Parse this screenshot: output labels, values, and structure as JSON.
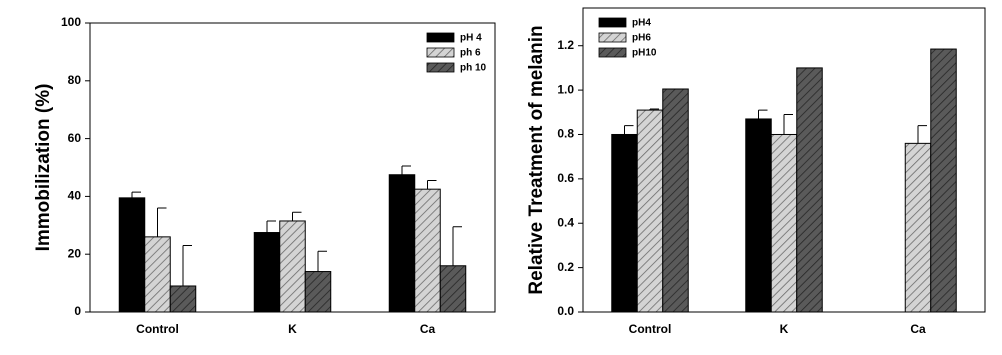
{
  "chart_data": [
    {
      "type": "bar",
      "y_label": "Immobilization (%)",
      "categories": [
        "Control",
        "K",
        "Ca"
      ],
      "series": [
        {
          "name": "pH 4",
          "color": "#000000",
          "hatch": false,
          "values": [
            39.5,
            27.5,
            47.5
          ],
          "errors": [
            2,
            4,
            3
          ]
        },
        {
          "name": "ph 6",
          "color": "#c8c8c8",
          "hatch": true,
          "values": [
            26,
            31.5,
            42.5
          ],
          "errors": [
            10,
            3,
            3
          ]
        },
        {
          "name": "ph 10",
          "color": "#555555",
          "hatch": true,
          "values": [
            9,
            14,
            16
          ],
          "errors": [
            14,
            7,
            13.5
          ]
        }
      ],
      "ylim": [
        0,
        100
      ],
      "yticks": [
        0,
        20,
        40,
        60,
        80,
        100
      ],
      "legend": "upper right"
    },
    {
      "type": "bar",
      "y_label": "Relative Treatment of melanin",
      "categories": [
        "Control",
        "K",
        "Ca"
      ],
      "series": [
        {
          "name": "pH4",
          "color": "#000000",
          "hatch": false,
          "values": [
            0.8,
            0.87,
            null
          ],
          "errors": [
            0.04,
            0.04,
            null
          ]
        },
        {
          "name": "pH6",
          "color": "#c8c8c8",
          "hatch": true,
          "values": [
            0.91,
            0.8,
            0.76
          ],
          "errors": [
            0.005,
            0.09,
            0.08
          ]
        },
        {
          "name": "pH10",
          "color": "#555555",
          "hatch": true,
          "values": [
            1.005,
            1.1,
            1.185
          ],
          "errors": [
            null,
            null,
            null
          ]
        }
      ],
      "ylim": [
        0,
        1.37
      ],
      "yticks": [
        {
          "value": 0,
          "label": "0.0"
        },
        0.2,
        0.4,
        0.6,
        0.8,
        {
          "value": 1,
          "label": "1.0"
        },
        1.2
      ],
      "legend": "upper left"
    }
  ]
}
